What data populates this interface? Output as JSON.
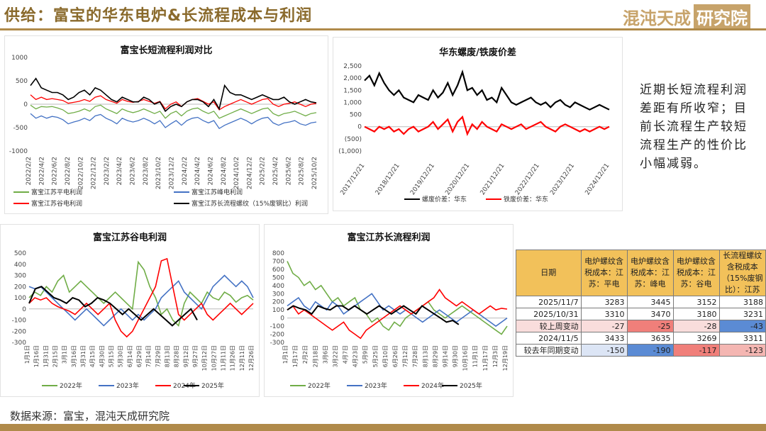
{
  "header": {
    "title": "供给：富宝的华东电炉&长流程成本与利润",
    "logo_text": "混沌天成",
    "logo_box": "研究院"
  },
  "note": "近期长短流程利润差距有所收窄；目前长流程生产较短流程生产的性价比小幅减弱。",
  "source": "数据来源：富宝，混沌天成研究院",
  "colors": {
    "green": "#70ad47",
    "blue": "#4472c4",
    "red": "#ff0000",
    "black": "#000000",
    "brand": "#b08a4a",
    "header_fill": "#f2c15a"
  },
  "chart_data": [
    {
      "type": "line",
      "title": "富宝长短流程利润对比",
      "ylim": [
        -1000,
        1000
      ],
      "yticks": [
        -1000,
        -500,
        0,
        500,
        1000
      ],
      "x_ticks": [
        "2022/2/2",
        "2022/4/2",
        "2022/6/2",
        "2022/8/2",
        "2022/10/2",
        "2022/12/2",
        "2023/2/2",
        "2023/4/2",
        "2023/6/2",
        "2023/8/2",
        "2023/10/2",
        "2023/12/2",
        "2024/2/2",
        "2024/4/2",
        "2024/6/2",
        "2024/8/2",
        "2024/10/2",
        "2024/12/2",
        "2025/2/2",
        "2025/4/2",
        "2025/6/2",
        "2025/8/2",
        "2025/10/2"
      ],
      "legend": [
        "富宝江苏平电利润",
        "富宝江苏峰电利润",
        "富宝江苏谷电利润",
        "富宝江苏长流程螺纹（15%废钢比）利润"
      ],
      "series": [
        {
          "name": "富宝江苏平电利润",
          "values": [
            -20,
            -100,
            -50,
            -60,
            -50,
            -80,
            -120,
            -200,
            -180,
            -150,
            -100,
            -150,
            -50,
            -20,
            -100,
            -150,
            -200,
            -100,
            -150,
            -180,
            -150,
            -100,
            -150,
            -200,
            -150,
            -300,
            -200,
            -150,
            -250,
            -150,
            -100,
            -80,
            -150,
            -200,
            -150,
            -300,
            -250,
            -200,
            -150,
            -100,
            -150,
            -200,
            -150,
            -100,
            -80,
            -200,
            -250,
            -200,
            -180,
            -150,
            -200,
            -250,
            -200,
            -180
          ]
        },
        {
          "name": "富宝江苏峰电利润",
          "values": [
            -200,
            -300,
            -250,
            -300,
            -260,
            -280,
            -330,
            -420,
            -380,
            -350,
            -300,
            -350,
            -250,
            -220,
            -300,
            -350,
            -420,
            -300,
            -350,
            -380,
            -350,
            -300,
            -350,
            -420,
            -350,
            -500,
            -420,
            -350,
            -450,
            -350,
            -300,
            -280,
            -350,
            -400,
            -350,
            -520,
            -450,
            -400,
            -350,
            -300,
            -350,
            -420,
            -350,
            -300,
            -280,
            -400,
            -450,
            -400,
            -380,
            -350,
            -420,
            -450,
            -400,
            -380
          ]
        },
        {
          "name": "富宝江苏谷电利润",
          "values": [
            200,
            100,
            150,
            100,
            120,
            100,
            80,
            20,
            40,
            60,
            100,
            60,
            150,
            180,
            100,
            60,
            20,
            100,
            60,
            40,
            60,
            100,
            60,
            20,
            60,
            -100,
            0,
            50,
            -50,
            50,
            100,
            120,
            60,
            0,
            50,
            -120,
            -50,
            0,
            50,
            100,
            50,
            0,
            50,
            100,
            120,
            0,
            -50,
            0,
            20,
            50,
            0,
            -50,
            0,
            20
          ]
        },
        {
          "name": "富宝江苏长流程螺纹（15%废钢比）利润",
          "values": [
            400,
            550,
            350,
            300,
            250,
            250,
            200,
            100,
            150,
            250,
            300,
            200,
            350,
            300,
            200,
            100,
            50,
            150,
            100,
            50,
            50,
            150,
            100,
            0,
            50,
            -150,
            -50,
            0,
            -50,
            50,
            100,
            100,
            50,
            -50,
            100,
            -100,
            400,
            250,
            200,
            200,
            150,
            100,
            150,
            200,
            150,
            100,
            100,
            150,
            50,
            0,
            50,
            100,
            50,
            30
          ]
        }
      ]
    },
    {
      "type": "line",
      "title": "华东螺废/铁废价差",
      "yticks": [
        "(1,000)",
        "(500)",
        "0",
        "500",
        "1,000",
        "1,500",
        "2,000",
        "2,500"
      ],
      "ylim": [
        -1000,
        2500
      ],
      "x_ticks": [
        "2017/12/21",
        "2018/12/21",
        "2019/12/21",
        "2020/12/21",
        "2021/12/21",
        "2022/12/21",
        "2023/12/21",
        "2024/12/21"
      ],
      "legend": [
        "螺废价差：华东",
        "铁废价差：华东"
      ],
      "series": [
        {
          "name": "螺废价差：华东",
          "values": [
            1900,
            2100,
            1700,
            2200,
            1800,
            1500,
            1300,
            1500,
            1200,
            1100,
            1000,
            1300,
            1200,
            1100,
            1500,
            1200,
            1400,
            1800,
            1300,
            1700,
            2250,
            1500,
            1600,
            1300,
            1500,
            1100,
            1200,
            1000,
            1600,
            1300,
            1000,
            900,
            1000,
            1100,
            1200,
            1000,
            900,
            1000,
            800,
            1000,
            1100,
            900,
            800,
            1000,
            900,
            800,
            700,
            800,
            900,
            800,
            700
          ]
        },
        {
          "name": "铁废价差：华东",
          "values": [
            0,
            -100,
            -200,
            0,
            -100,
            0,
            -200,
            -100,
            -300,
            -100,
            0,
            -200,
            -100,
            0,
            200,
            -100,
            100,
            300,
            -200,
            200,
            400,
            -300,
            100,
            -100,
            200,
            0,
            -100,
            -200,
            100,
            0,
            -100,
            0,
            100,
            -100,
            0,
            100,
            200,
            0,
            -100,
            -200,
            0,
            100,
            0,
            -100,
            -200,
            -100,
            -200,
            -100,
            0,
            -100,
            0
          ]
        }
      ]
    },
    {
      "type": "line",
      "title": "富宝江苏谷电利润",
      "ylim": [
        -300,
        500
      ],
      "yticks": [
        -300,
        -200,
        -100,
        0,
        100,
        200,
        300,
        400,
        500
      ],
      "x_ticks": [
        "1月1日",
        "1月16日",
        "1月31日",
        "2月15日",
        "3月1日",
        "3月16日",
        "3月31日",
        "4月15日",
        "4月30日",
        "5月15日",
        "5月30日",
        "6月14日",
        "6月29日",
        "7月14日",
        "7月29日",
        "8月13日",
        "8月28日",
        "9月12日",
        "9月27日",
        "10月12日",
        "10月27日",
        "11月11日",
        "11月26日",
        "12月11日",
        "12月26日"
      ],
      "legend": [
        "2022年",
        "2023年",
        "2024年",
        "2025年"
      ],
      "series": [
        {
          "name": "2022年",
          "values": [
            100,
            150,
            120,
            200,
            150,
            250,
            300,
            150,
            200,
            250,
            200,
            150,
            100,
            50,
            100,
            150,
            100,
            50,
            0,
            420,
            350,
            200,
            100,
            -50,
            0,
            -100,
            -150,
            50,
            150,
            100,
            50,
            150,
            100,
            80,
            150,
            120,
            60,
            100,
            120,
            80
          ]
        },
        {
          "name": "2023年",
          "values": [
            200,
            180,
            200,
            150,
            100,
            50,
            0,
            -50,
            -100,
            -50,
            0,
            -50,
            -100,
            -150,
            -100,
            -50,
            0,
            -50,
            -100,
            -50,
            -100,
            -50,
            0,
            100,
            150,
            200,
            250,
            150,
            100,
            50,
            0,
            100,
            200,
            250,
            300,
            250,
            200,
            250,
            200,
            100
          ]
        },
        {
          "name": "2024年",
          "values": [
            50,
            100,
            80,
            100,
            50,
            20,
            0,
            -20,
            -50,
            0,
            50,
            0,
            -50,
            0,
            50,
            -100,
            -200,
            -250,
            -200,
            -100,
            0,
            100,
            200,
            430,
            450,
            200,
            -50,
            -100,
            -50,
            0,
            50,
            -50,
            -100,
            -50,
            0,
            50,
            0,
            -50,
            0,
            50
          ]
        },
        {
          "name": "2025年",
          "values": [
            50,
            180,
            200,
            150,
            100,
            80,
            50,
            100,
            80,
            20,
            50,
            100,
            80,
            50,
            0,
            -50,
            0,
            -50,
            -100,
            -50,
            0,
            -50,
            -100,
            -150,
            -100,
            -50,
            0,
            -100
          ]
        }
      ]
    },
    {
      "type": "line",
      "title": "富宝江苏长流程利润",
      "ylim": [
        -300,
        800
      ],
      "yticks": [
        -300,
        -200,
        -100,
        0,
        100,
        200,
        300,
        400,
        500,
        600,
        700,
        800
      ],
      "x_ticks": [
        "1月1日",
        "1月17日",
        "2月2日",
        "2月18日",
        "3月6日",
        "3月22日",
        "4月7日",
        "4月23日",
        "5月9日",
        "5月25日",
        "6月10日",
        "6月26日",
        "7月12日",
        "7月28日",
        "8月13日",
        "8月29日",
        "9月14日",
        "9月30日",
        "10月16日",
        "11月1日",
        "11月17日",
        "12月3日",
        "12月19日"
      ],
      "legend": [
        "2022年",
        "2023年",
        "2024年",
        "2025年"
      ],
      "series": [
        {
          "name": "2022年",
          "values": [
            700,
            550,
            500,
            400,
            450,
            350,
            400,
            300,
            200,
            250,
            150,
            200,
            250,
            100,
            50,
            -50,
            0,
            -100,
            -150,
            -50,
            -100,
            0,
            50,
            100,
            150,
            200,
            100,
            50,
            0,
            50,
            100,
            150,
            100,
            50,
            0,
            -50,
            -100,
            -150,
            -200,
            -100
          ]
        },
        {
          "name": "2023年",
          "values": [
            150,
            200,
            250,
            150,
            100,
            200,
            150,
            100,
            200,
            150,
            50,
            100,
            150,
            200,
            250,
            300,
            200,
            100,
            150,
            100,
            50,
            100,
            50,
            0,
            -50,
            0,
            50,
            100,
            50,
            0,
            -50,
            0,
            50,
            100,
            50,
            0,
            -50,
            -100,
            -50,
            0
          ]
        },
        {
          "name": "2024年",
          "values": [
            100,
            150,
            50,
            100,
            50,
            0,
            -50,
            -100,
            -150,
            -100,
            -50,
            -150,
            -200,
            -250,
            -150,
            -100,
            -50,
            0,
            50,
            100,
            150,
            100,
            50,
            100,
            150,
            200,
            250,
            350,
            250,
            200,
            150,
            200,
            150,
            100,
            50,
            100,
            150,
            100,
            120,
            110
          ]
        },
        {
          "name": "2025年",
          "values": [
            100,
            150,
            120,
            100,
            50,
            150,
            120,
            100,
            150,
            150,
            100,
            150,
            100,
            50,
            100,
            150,
            100,
            50,
            100,
            150,
            100,
            50,
            150,
            100,
            50,
            0,
            -50,
            -30,
            -80
          ]
        }
      ]
    },
    {
      "type": "table",
      "headers": [
        "日期",
        "电炉螺纹含税成本：江苏：平电",
        "电炉螺纹含税成本：江苏：峰电",
        "电炉螺纹含税成本：江苏：谷电",
        "长流程螺纹含税成本（15%废钢比）：江苏"
      ],
      "rows": [
        {
          "label": "2025/11/7",
          "values": [
            "3283",
            "3445",
            "3152",
            "3188"
          ]
        },
        {
          "label": "2025/10/31",
          "values": [
            "3310",
            "3470",
            "3180",
            "3231"
          ]
        },
        {
          "label": "较上周变动",
          "values": [
            "-27",
            "-25",
            "-28",
            "-43"
          ]
        },
        {
          "label": "2024/11/5",
          "values": [
            "3433",
            "3635",
            "3269",
            "3311"
          ]
        },
        {
          "label": "较去年同期变动",
          "values": [
            "-150",
            "-190",
            "-117",
            "-123"
          ]
        }
      ]
    }
  ]
}
